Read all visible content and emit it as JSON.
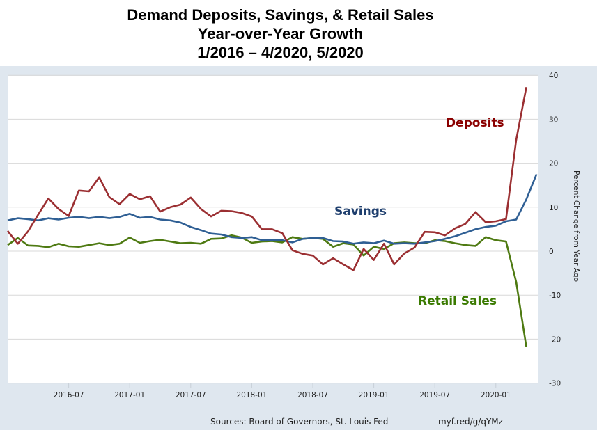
{
  "title": {
    "line1": "Demand Deposits, Savings, & Retail Sales",
    "line2": "Year-over-Year Growth",
    "line3": "1/2016 – 4/2020, 5/2020"
  },
  "footer": {
    "sources": "Sources: Board of Governors, St. Louis Fed",
    "url": "myf.red/g/qYMz"
  },
  "chart_data": {
    "type": "line",
    "title": "Demand Deposits, Savings, & Retail Sales Year-over-Year Growth 1/2016 – 4/2020, 5/2020",
    "xlabel": "",
    "ylabel": "Percent Change from Year Ago",
    "y_axis_side": "right",
    "ylim": [
      -30,
      40
    ],
    "yticks": [
      40,
      30,
      20,
      10,
      0,
      -10,
      -20,
      -30
    ],
    "xlim": [
      "2016-01",
      "2020-05"
    ],
    "xticks": [
      "2016-07",
      "2017-01",
      "2017-07",
      "2018-01",
      "2018-07",
      "2019-01",
      "2019-07",
      "2020-01"
    ],
    "grid": true,
    "legend": "none (inline annotations)",
    "annotations": [
      {
        "text": "Deposits",
        "color": "#8b0000"
      },
      {
        "text": "Savings",
        "color": "#1f3f6e"
      },
      {
        "text": "Retail Sales",
        "color": "#3a7a00"
      }
    ],
    "series": [
      {
        "name": "Deposits",
        "color": "#9b2f32",
        "start": "2016-01",
        "frequency": "monthly",
        "values": [
          4.6,
          1.7,
          4.5,
          8.3,
          12,
          9.6,
          8,
          13.8,
          13.6,
          16.8,
          12.3,
          10.7,
          13,
          11.8,
          12.5,
          9,
          10,
          10.6,
          12.2,
          9.6,
          7.9,
          9.2,
          9.1,
          8.7,
          7.9,
          5,
          5,
          4.1,
          0.2,
          -0.6,
          -1,
          -3,
          -1.6,
          -3,
          -4.3,
          0.5,
          -2,
          1.7,
          -3,
          -0.5,
          0.8,
          4.4,
          4.3,
          3.6,
          5.2,
          6.2,
          8.9,
          6.6,
          6.8,
          7.3,
          25.3,
          37.3
        ]
      },
      {
        "name": "Savings",
        "color": "#2f5f94",
        "start": "2016-01",
        "frequency": "monthly",
        "values": [
          7,
          7.5,
          7.3,
          7,
          7.5,
          7.2,
          7.6,
          7.8,
          7.5,
          7.8,
          7.5,
          7.8,
          8.5,
          7.6,
          7.8,
          7.2,
          7,
          6.5,
          5.5,
          4.8,
          4,
          3.8,
          3.2,
          3,
          3.2,
          2.5,
          2.5,
          2.5,
          2,
          2.8,
          3,
          3,
          2.3,
          2.2,
          1.7,
          2,
          1.8,
          2.4,
          1.7,
          1.8,
          1.7,
          2,
          2.3,
          2.8,
          3.4,
          4.2,
          5,
          5.5,
          5.8,
          6.8,
          7.2,
          11.8,
          17.5
        ]
      },
      {
        "name": "Retail Sales",
        "color": "#4e7a12",
        "start": "2016-01",
        "frequency": "monthly",
        "values": [
          1.4,
          3,
          1.3,
          1.2,
          0.9,
          1.7,
          1.1,
          1,
          1.4,
          1.8,
          1.4,
          1.7,
          3.1,
          1.9,
          2.3,
          2.6,
          2.2,
          1.8,
          1.9,
          1.7,
          2.8,
          2.9,
          3.6,
          3.1,
          1.9,
          2.2,
          2.3,
          2,
          3.2,
          2.8,
          3,
          2.8,
          1,
          1.8,
          1.5,
          -1,
          1,
          0.5,
          1.8,
          2,
          1.8,
          1.8,
          2.5,
          2.3,
          1.8,
          1.4,
          1.2,
          3.2,
          2.5,
          2.2,
          -7,
          -21.8
        ]
      }
    ]
  }
}
